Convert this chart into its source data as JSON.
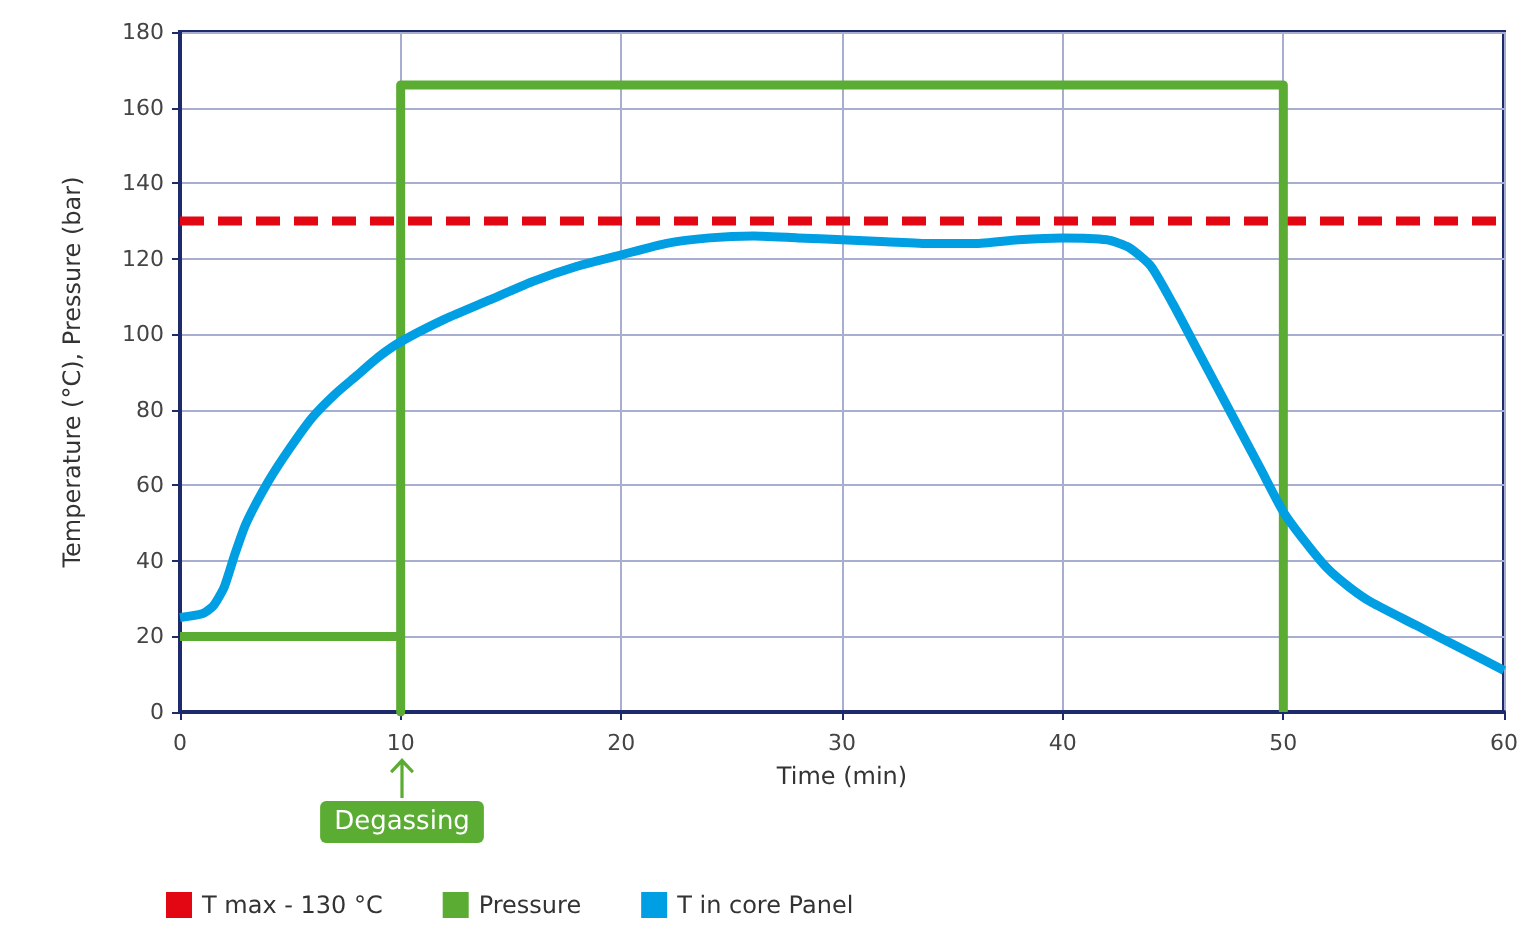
{
  "chart_data": {
    "type": "line",
    "xlabel": "Time (min)",
    "ylabel": "Temperature (°C), Pressure (bar)",
    "xlim": [
      0,
      60
    ],
    "ylim": [
      0,
      180
    ],
    "xticks": [
      0,
      10,
      20,
      30,
      40,
      50,
      60
    ],
    "yticks": [
      0,
      20,
      40,
      60,
      80,
      100,
      120,
      140,
      160,
      180
    ],
    "grid": true,
    "legend": "bottom left",
    "marker": "none",
    "series": [
      {
        "name": "T max - 130 °C",
        "color": "#e30613",
        "line_style": "dashed",
        "x": [
          0,
          60
        ],
        "values": [
          130,
          130
        ]
      },
      {
        "name": "Pressure",
        "color": "#5aac32",
        "line_style": "solid",
        "x": [
          0,
          10,
          10,
          10,
          50,
          50
        ],
        "values": [
          20,
          20,
          0,
          166,
          166,
          0
        ]
      },
      {
        "name": "T in core Panel",
        "color": "#009fe3",
        "line_style": "solid",
        "x": [
          0,
          1,
          1.5,
          2,
          2.5,
          3,
          4,
          5,
          6,
          7,
          8,
          9,
          10,
          12,
          14,
          16,
          18,
          20,
          22,
          24,
          26,
          28,
          30,
          32,
          34,
          36,
          38,
          40,
          42,
          43,
          44,
          45,
          46,
          47,
          48,
          49,
          50,
          51,
          52,
          53,
          54,
          56,
          58,
          60
        ],
        "values": [
          25,
          26,
          28,
          33,
          42,
          50,
          61,
          70,
          78,
          84,
          89,
          94,
          98,
          104,
          109,
          114,
          118,
          121,
          124,
          125.5,
          126,
          125.5,
          125,
          124.5,
          124,
          124,
          125,
          125.5,
          125,
          123,
          118,
          108,
          97,
          86,
          75,
          64,
          53,
          45,
          38,
          33,
          29,
          23,
          17,
          11
        ]
      }
    ],
    "annotations": [
      "Degassing"
    ]
  }
}
